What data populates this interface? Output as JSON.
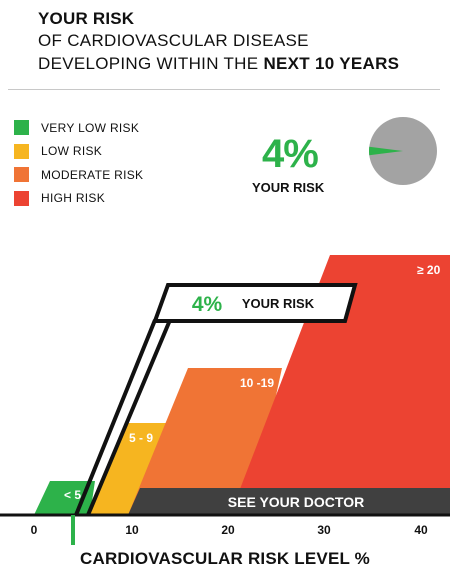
{
  "header": {
    "line1": "YOUR RISK",
    "line2": "OF CARDIOVASCULAR DISEASE",
    "line3_prefix": "DEVELOPING WITHIN THE ",
    "line3_bold": "NEXT 10 YEARS"
  },
  "legend": [
    {
      "label": "VERY LOW RISK",
      "color": "#2db24a"
    },
    {
      "label": "LOW RISK",
      "color": "#f6b520"
    },
    {
      "label": "MODERATE RISK",
      "color": "#f07435"
    },
    {
      "label": "HIGH RISK",
      "color": "#ec4332"
    }
  ],
  "risk": {
    "value_label": "4%",
    "caption": "YOUR RISK",
    "fraction": 0.04,
    "pie_color": "#a3a3a3",
    "highlight_color": "#2db24a"
  },
  "chart": {
    "callout_value": "4%",
    "callout_label": "YOUR RISK",
    "band_labels": [
      "< 5",
      "5 - 9",
      "10 -19",
      "≥ 20"
    ],
    "doctor_label": "SEE YOUR DOCTOR",
    "x_ticks": [
      "0",
      "10",
      "20",
      "30",
      "40"
    ],
    "x_title": "CARDIOVASCULAR RISK LEVEL %",
    "marker_value": 4
  }
}
